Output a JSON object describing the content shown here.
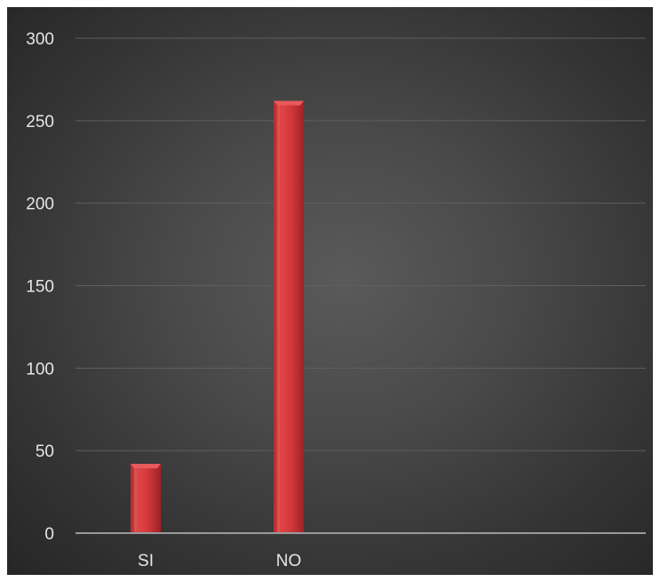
{
  "chart_data": {
    "type": "bar",
    "title": "",
    "xlabel": "",
    "ylabel": "",
    "categories": [
      "SI",
      "NO"
    ],
    "values": [
      42,
      262
    ],
    "ylim": [
      0,
      300
    ],
    "yticks": [
      0,
      50,
      100,
      150,
      200,
      250,
      300
    ],
    "ytick_labels": [
      "0",
      "50",
      "100",
      "150",
      "200",
      "250",
      "300"
    ],
    "grid": true,
    "legend": "none",
    "colors": {
      "bar": "#d0373a",
      "bar_light": "#e85a5c",
      "bar_dark": "#9e2226",
      "gridline": "#5f5f5f",
      "axis": "#9a9a9a",
      "text": "#e6e6e6"
    }
  }
}
